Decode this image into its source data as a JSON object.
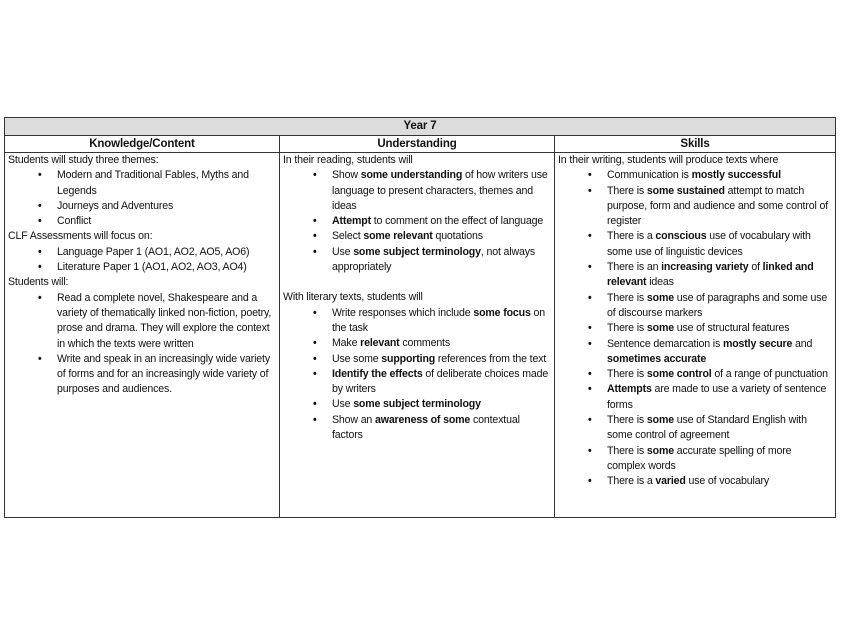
{
  "title": "Year 7",
  "columns": [
    "Knowledge/Content",
    "Understanding",
    "Skills"
  ],
  "cells": [
    [
      {
        "intro": "Students will study three themes:",
        "items": [
          [
            {
              "t": "Modern and Traditional Fables, Myths and Legends"
            }
          ],
          [
            {
              "t": "Journeys and Adventures"
            }
          ],
          [
            {
              "t": "Conflict"
            }
          ]
        ]
      },
      {
        "intro": "CLF Assessments will focus on:",
        "items": [
          [
            {
              "t": "Language Paper 1 (AO1, AO2, AO5, AO6)"
            }
          ],
          [
            {
              "t": "Literature Paper 1 (AO1, AO2, AO3, AO4)"
            }
          ]
        ]
      },
      {
        "intro": "Students will:",
        "items": [
          [
            {
              "t": "Read a complete novel, Shakespeare and a variety of thematically linked non-fiction, poetry, prose and drama. They will explore the context in which the texts were written"
            }
          ],
          [
            {
              "t": "Write and speak in an increasingly wide variety of forms and for an increasingly wide variety of purposes and audiences."
            }
          ]
        ]
      }
    ],
    [
      {
        "intro": "In their reading, students will",
        "items": [
          [
            {
              "t": "Show "
            },
            {
              "t": "some understanding",
              "b": true
            },
            {
              "t": " of how writers use language to present characters, themes and ideas"
            }
          ],
          [
            {
              "t": "Attempt",
              "b": true
            },
            {
              "t": " to comment on the effect of language"
            }
          ],
          [
            {
              "t": "Select "
            },
            {
              "t": "some relevant",
              "b": true
            },
            {
              "t": " quotations"
            }
          ],
          [
            {
              "t": "Use "
            },
            {
              "t": "some subject terminology",
              "b": true
            },
            {
              "t": ", not always appropriately"
            }
          ]
        ]
      },
      {
        "gap": true,
        "intro": "With literary texts, students will",
        "items": [
          [
            {
              "t": "Write responses which include "
            },
            {
              "t": "some focus",
              "b": true
            },
            {
              "t": " on the task"
            }
          ],
          [
            {
              "t": "Make "
            },
            {
              "t": "relevant",
              "b": true
            },
            {
              "t": " comments"
            }
          ],
          [
            {
              "t": "Use some "
            },
            {
              "t": "supporting",
              "b": true
            },
            {
              "t": " references from the text"
            }
          ],
          [
            {
              "t": "Identify the effects",
              "b": true
            },
            {
              "t": " of deliberate choices made by writers"
            }
          ],
          [
            {
              "t": "Use "
            },
            {
              "t": "some subject terminology",
              "b": true
            }
          ],
          [
            {
              "t": "Show an "
            },
            {
              "t": "awareness of some",
              "b": true
            },
            {
              "t": " contextual factors"
            }
          ]
        ]
      }
    ],
    [
      {
        "intro": "In their writing, students will produce texts where",
        "items": [
          [
            {
              "t": "Communication is "
            },
            {
              "t": "mostly successful",
              "b": true
            }
          ],
          [
            {
              "t": "There is "
            },
            {
              "t": "some sustained",
              "b": true
            },
            {
              "t": " attempt to match purpose, form and audience and some control of register"
            }
          ],
          [
            {
              "t": "There is a "
            },
            {
              "t": "conscious",
              "b": true
            },
            {
              "t": " use of vocabulary with some use of linguistic devices"
            }
          ],
          [
            {
              "t": "There is an "
            },
            {
              "t": "increasing variety",
              "b": true
            },
            {
              "t": " of "
            },
            {
              "t": "linked and relevant",
              "b": true
            },
            {
              "t": " ideas"
            }
          ],
          [
            {
              "t": "There is "
            },
            {
              "t": "some",
              "b": true
            },
            {
              "t": " use of paragraphs and some use of discourse markers"
            }
          ],
          [
            {
              "t": "There is "
            },
            {
              "t": "some",
              "b": true
            },
            {
              "t": " use of structural features"
            }
          ],
          [
            {
              "t": "Sentence demarcation is "
            },
            {
              "t": "mostly secure",
              "b": true
            },
            {
              "t": " and "
            },
            {
              "t": "sometimes accurate",
              "b": true
            }
          ],
          [
            {
              "t": "There is "
            },
            {
              "t": "some control",
              "b": true
            },
            {
              "t": " of a range of punctuation"
            }
          ],
          [
            {
              "t": "Attempts",
              "b": true
            },
            {
              "t": " are made to use a variety of sentence forms"
            }
          ],
          [
            {
              "t": "There is "
            },
            {
              "t": "some",
              "b": true
            },
            {
              "t": " use of Standard English with some control of agreement"
            }
          ],
          [
            {
              "t": "There is "
            },
            {
              "t": "some",
              "b": true
            },
            {
              "t": " accurate spelling of more complex words"
            }
          ],
          [
            {
              "t": "There is a "
            },
            {
              "t": "varied",
              "b": true
            },
            {
              "t": " use of vocabulary"
            }
          ]
        ]
      }
    ]
  ]
}
